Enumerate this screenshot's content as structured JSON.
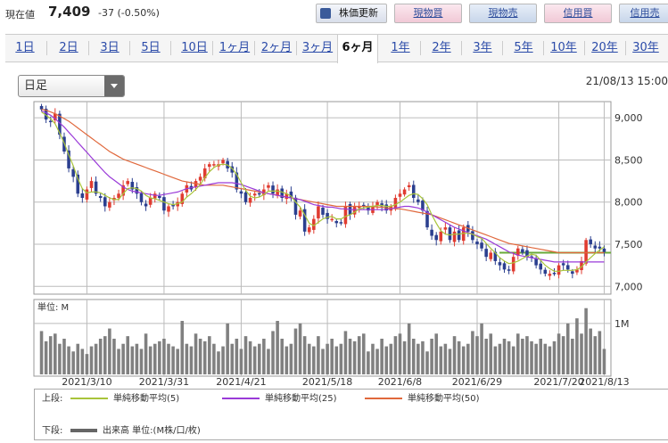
{
  "header": {
    "price_label": "現在値",
    "price": "7,409",
    "change": "-37 (-0.50%)",
    "refresh_label": "株価更新",
    "buttons": [
      "現物買",
      "現物売",
      "信用買",
      "信用売"
    ]
  },
  "tabs": [
    "1日",
    "2日",
    "3日",
    "5日",
    "10日",
    "1ヶ月",
    "2ヶ月",
    "3ヶ月",
    "6ヶ月",
    "1年",
    "2年",
    "3年",
    "5年",
    "10年",
    "20年",
    "30年"
  ],
  "active_tab": "6ヶ月",
  "period_select": {
    "value": "日足"
  },
  "datetime": "21/08/13 15:00",
  "colors": {
    "up": "#e03c31",
    "down": "#2b3f8f",
    "ma5": "#a8c43a",
    "ma25": "#9a3ad8",
    "ma50": "#e0683c",
    "hline": "#6aaa3a",
    "volume": "#808080"
  },
  "chart_data": {
    "type": "candlestick",
    "x_ticks": [
      "2021/3/10",
      "2021/3/31",
      "2021/4/21",
      "2021/5/18",
      "2021/6/8",
      "2021/6/29",
      "2021/7/20",
      "2021/8/13"
    ],
    "y_ticks": [
      7000,
      7500,
      8000,
      8500,
      9000
    ],
    "ylim": [
      6950,
      9150
    ],
    "reference_line": 7400,
    "volume_unit_label": "単位: M",
    "volume_ticks": [
      "1M"
    ],
    "volume_ylim": [
      0,
      1.4
    ],
    "closes": [
      9100,
      8980,
      8950,
      9050,
      8800,
      8600,
      8400,
      8300,
      8100,
      8050,
      8150,
      8250,
      8100,
      8050,
      7950,
      8000,
      8050,
      8100,
      8200,
      8250,
      8150,
      8100,
      8000,
      7950,
      8050,
      8100,
      8050,
      7900,
      7950,
      7950,
      8000,
      8100,
      8200,
      8150,
      8250,
      8300,
      8400,
      8450,
      8450,
      8450,
      8500,
      8400,
      8350,
      8150,
      8100,
      8000,
      8050,
      8100,
      8100,
      8150,
      8200,
      8100,
      8150,
      8050,
      8100,
      8050,
      7850,
      7900,
      7650,
      7700,
      7800,
      7950,
      7850,
      7800,
      7800,
      7750,
      7750,
      7950,
      7850,
      7950,
      7950,
      7950,
      7900,
      7950,
      8000,
      7950,
      7900,
      7950,
      8050,
      8100,
      8150,
      8200,
      8050,
      8000,
      7900,
      7700,
      7600,
      7550,
      7650,
      7700,
      7550,
      7650,
      7550,
      7700,
      7650,
      7550,
      7500,
      7450,
      7350,
      7400,
      7300,
      7250,
      7200,
      7200,
      7350,
      7450,
      7400,
      7350,
      7350,
      7250,
      7200,
      7150,
      7150,
      7150,
      7250,
      7250,
      7200,
      7150,
      7200,
      7300,
      7550,
      7500,
      7450,
      7450,
      7409
    ],
    "ma5": [
      9070,
      9030,
      8990,
      8930,
      8820,
      8700,
      8560,
      8430,
      8280,
      8160,
      8110,
      8120,
      8120,
      8110,
      8080,
      8050,
      8030,
      8030,
      8100,
      8160,
      8170,
      8160,
      8130,
      8080,
      8050,
      8040,
      8020,
      8000,
      7980,
      7970,
      7980,
      8000,
      8060,
      8100,
      8150,
      8210,
      8290,
      8360,
      8410,
      8440,
      8450,
      8440,
      8400,
      8330,
      8230,
      8140,
      8070,
      8050,
      8060,
      8090,
      8130,
      8130,
      8130,
      8120,
      8100,
      8070,
      8000,
      7940,
      7850,
      7750,
      7720,
      7760,
      7800,
      7820,
      7830,
      7800,
      7800,
      7830,
      7850,
      7880,
      7920,
      7930,
      7940,
      7950,
      7960,
      7960,
      7950,
      7950,
      7970,
      8000,
      8040,
      8080,
      8100,
      8090,
      8040,
      7970,
      7850,
      7750,
      7660,
      7620,
      7610,
      7620,
      7620,
      7630,
      7630,
      7620,
      7590,
      7570,
      7510,
      7450,
      7400,
      7340,
      7300,
      7270,
      7280,
      7300,
      7330,
      7360,
      7380,
      7370,
      7310,
      7250,
      7210,
      7180,
      7180,
      7190,
      7190,
      7190,
      7200,
      7230,
      7290,
      7340,
      7390,
      7430,
      7470
    ],
    "ma25": [
      9080,
      9060,
      9030,
      8990,
      8940,
      8890,
      8830,
      8770,
      8710,
      8650,
      8590,
      8530,
      8470,
      8410,
      8350,
      8300,
      8260,
      8220,
      8180,
      8150,
      8130,
      8120,
      8110,
      8100,
      8090,
      8080,
      8080,
      8090,
      8100,
      8110,
      8120,
      8140,
      8160,
      8170,
      8180,
      8190,
      8200,
      8210,
      8220,
      8230,
      8230,
      8230,
      8230,
      8220,
      8210,
      8190,
      8170,
      8150,
      8130,
      8110,
      8100,
      8090,
      8080,
      8070,
      8060,
      8050,
      8040,
      8030,
      8010,
      7990,
      7970,
      7960,
      7950,
      7940,
      7940,
      7930,
      7920,
      7920,
      7910,
      7910,
      7910,
      7910,
      7910,
      7910,
      7910,
      7910,
      7910,
      7920,
      7930,
      7940,
      7950,
      7950,
      7940,
      7930,
      7910,
      7880,
      7850,
      7820,
      7790,
      7760,
      7730,
      7700,
      7680,
      7660,
      7640,
      7620,
      7600,
      7580,
      7560,
      7530,
      7500,
      7470,
      7440,
      7410,
      7390,
      7370,
      7360,
      7350,
      7340,
      7330,
      7320,
      7310,
      7300,
      7290,
      7290,
      7290,
      7290,
      7290,
      7290,
      7290,
      7290,
      7290,
      7290,
      7290,
      7290
    ],
    "ma50": [
      9100,
      9090,
      9070,
      9050,
      9020,
      8990,
      8960,
      8920,
      8880,
      8840,
      8800,
      8760,
      8720,
      8680,
      8640,
      8600,
      8570,
      8540,
      8510,
      8490,
      8470,
      8450,
      8430,
      8410,
      8390,
      8370,
      8350,
      8330,
      8310,
      8290,
      8270,
      8250,
      8240,
      8230,
      8220,
      8210,
      8200,
      8200,
      8200,
      8200,
      8200,
      8190,
      8180,
      8170,
      8160,
      8150,
      8140,
      8130,
      8120,
      8110,
      8100,
      8090,
      8080,
      8070,
      8060,
      8050,
      8040,
      8030,
      8020,
      8010,
      8000,
      7990,
      7980,
      7970,
      7960,
      7950,
      7950,
      7950,
      7950,
      7950,
      7950,
      7950,
      7950,
      7950,
      7940,
      7940,
      7930,
      7930,
      7920,
      7920,
      7910,
      7900,
      7890,
      7880,
      7870,
      7860,
      7850,
      7830,
      7810,
      7790,
      7770,
      7750,
      7730,
      7710,
      7690,
      7670,
      7650,
      7630,
      7610,
      7590,
      7570,
      7550,
      7530,
      7510,
      7500,
      7490,
      7480,
      7470,
      7460,
      7450,
      7440,
      7430,
      7420,
      7410,
      7400,
      7400,
      7400,
      7400,
      7400,
      7400,
      7400,
      7400,
      7400,
      7400,
      7400
    ],
    "volume": [
      0.85,
      0.65,
      0.75,
      0.8,
      0.6,
      0.7,
      0.55,
      0.45,
      0.6,
      0.5,
      0.4,
      0.55,
      0.6,
      0.7,
      0.75,
      0.9,
      0.7,
      0.5,
      0.6,
      0.75,
      0.55,
      0.6,
      0.5,
      0.8,
      0.55,
      0.6,
      0.65,
      0.7,
      0.6,
      0.55,
      0.5,
      1.05,
      0.6,
      0.55,
      0.8,
      0.7,
      0.65,
      0.75,
      0.6,
      0.45,
      0.55,
      1.0,
      0.6,
      0.7,
      0.5,
      0.75,
      0.65,
      0.55,
      0.6,
      0.7,
      0.5,
      0.85,
      1.05,
      0.7,
      0.55,
      0.6,
      0.9,
      1.0,
      0.75,
      0.6,
      0.55,
      0.75,
      0.5,
      0.6,
      0.7,
      0.55,
      0.6,
      0.85,
      0.7,
      0.65,
      0.75,
      0.8,
      0.45,
      0.6,
      0.5,
      0.7,
      0.55,
      0.6,
      0.75,
      0.8,
      0.65,
      1.0,
      0.7,
      0.6,
      0.65,
      0.45,
      0.7,
      0.8,
      0.55,
      0.6,
      0.5,
      0.75,
      0.65,
      0.55,
      0.6,
      0.85,
      0.75,
      1.0,
      0.7,
      0.8,
      0.55,
      0.6,
      0.7,
      0.65,
      0.55,
      0.8,
      0.7,
      0.75,
      0.65,
      0.6,
      0.7,
      0.6,
      0.55,
      0.65,
      0.8,
      0.75,
      1.0,
      0.7,
      1.1,
      0.8,
      1.3,
      0.9,
      0.75,
      0.85,
      0.5
    ]
  },
  "legend": {
    "upper_label": "上段:",
    "lower_label": "下段:",
    "ma5_label": "単純移動平均(5)",
    "ma25_label": "単純移動平均(25)",
    "ma50_label": "単純移動平均(50)",
    "volume_label": "出来高 単位:(M株/口/枚)"
  }
}
